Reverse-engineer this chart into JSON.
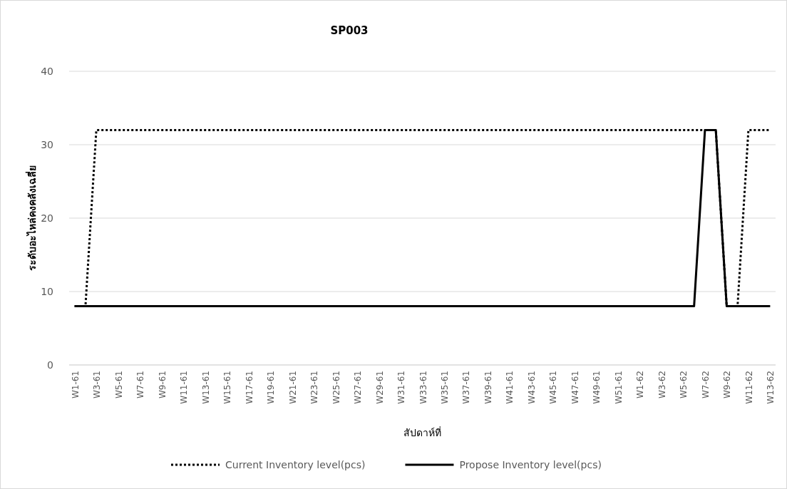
{
  "chart_data": {
    "type": "line",
    "title": "SP003",
    "xlabel": "สัปดาห์ที่",
    "ylabel": "ระดับอะไหล่คงคลังเฉลี่ย",
    "categories": [
      "W1-61",
      null,
      "W3-61",
      null,
      "W5-61",
      null,
      "W7-61",
      null,
      "W9-61",
      null,
      "W11-61",
      null,
      "W13-61",
      null,
      "W15-61",
      null,
      "W17-61",
      null,
      "W19-61",
      null,
      "W21-61",
      null,
      "W23-61",
      null,
      "W25-61",
      null,
      "W27-61",
      null,
      "W29-61",
      null,
      "W31-61",
      null,
      "W33-61",
      null,
      "W35-61",
      null,
      "W37-61",
      null,
      "W39-61",
      null,
      "W41-61",
      null,
      "W43-61",
      null,
      "W45-61",
      null,
      "W47-61",
      null,
      "W49-61",
      null,
      "W51-61",
      null,
      "W1-62",
      null,
      "W3-62",
      null,
      "W5-62",
      null,
      "W7-62",
      null,
      "W9-62",
      null,
      "W11-62",
      null,
      "W13-62"
    ],
    "series": [
      {
        "name": "Current Inventory level(pcs)",
        "color": "#000000",
        "line_style": "dotted",
        "values": [
          8,
          8,
          32,
          32,
          32,
          32,
          32,
          32,
          32,
          32,
          32,
          32,
          32,
          32,
          32,
          32,
          32,
          32,
          32,
          32,
          32,
          32,
          32,
          32,
          32,
          32,
          32,
          32,
          32,
          32,
          32,
          32,
          32,
          32,
          32,
          32,
          32,
          32,
          32,
          32,
          32,
          32,
          32,
          32,
          32,
          32,
          32,
          32,
          32,
          32,
          32,
          32,
          32,
          32,
          32,
          32,
          32,
          32,
          32,
          32,
          8,
          8,
          32,
          32,
          32
        ]
      },
      {
        "name": "Propose Inventory level(pcs)",
        "color": "#000000",
        "line_style": "solid",
        "values": [
          8,
          8,
          8,
          8,
          8,
          8,
          8,
          8,
          8,
          8,
          8,
          8,
          8,
          8,
          8,
          8,
          8,
          8,
          8,
          8,
          8,
          8,
          8,
          8,
          8,
          8,
          8,
          8,
          8,
          8,
          8,
          8,
          8,
          8,
          8,
          8,
          8,
          8,
          8,
          8,
          8,
          8,
          8,
          8,
          8,
          8,
          8,
          8,
          8,
          8,
          8,
          8,
          8,
          8,
          8,
          8,
          8,
          8,
          32,
          32,
          8,
          8,
          8,
          8,
          8
        ]
      }
    ],
    "ylim": [
      0,
      40
    ],
    "yticks": [
      0,
      10,
      20,
      30,
      40
    ],
    "grid": "y",
    "legend": "bottom"
  }
}
